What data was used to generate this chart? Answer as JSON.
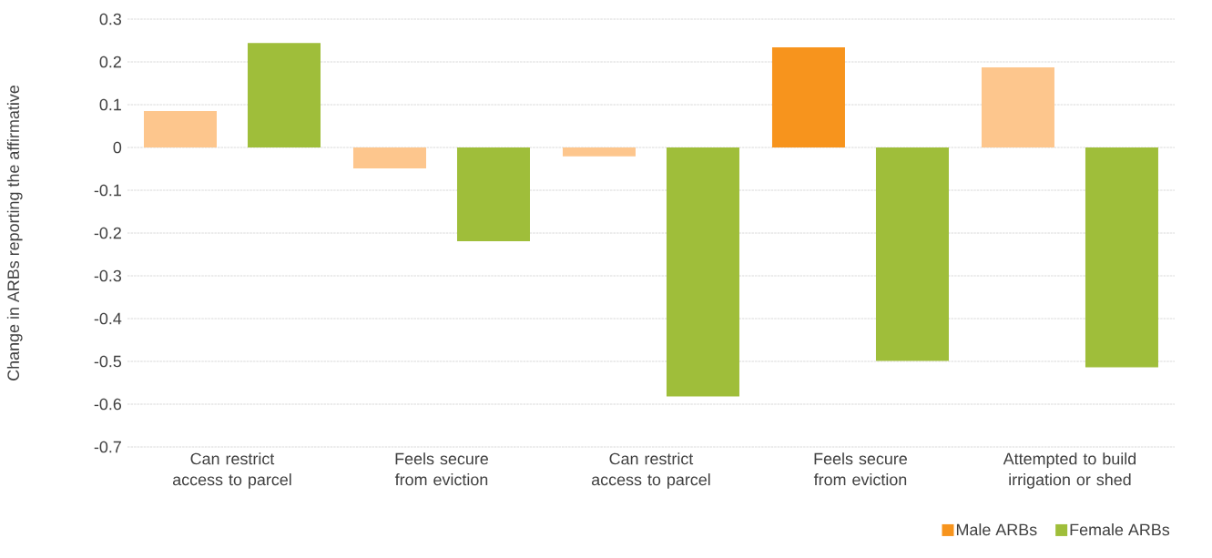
{
  "chart_data": {
    "type": "bar",
    "ylabel": "Change in ARBs reporting the affirmative",
    "categories": [
      "Can restrict access to parcel",
      "Feels secure from eviction",
      "Can restrict access to parcel",
      "Feels secure from eviction",
      "Attempted to build irrigation or shed"
    ],
    "series": [
      {
        "name": "Male ARBs",
        "color": "#f7941d",
        "colors": [
          "#fdc68d",
          "#fdc68d",
          "#fdc68d",
          "#f7941d",
          "#fdc68d"
        ],
        "values": [
          0.085,
          -0.049,
          -0.021,
          0.234,
          0.187
        ]
      },
      {
        "name": "Female ARBs",
        "color": "#9fbe3a",
        "colors": [
          "#9fbe3a",
          "#9fbe3a",
          "#9fbe3a",
          "#9fbe3a",
          "#9fbe3a"
        ],
        "values": [
          0.244,
          -0.219,
          -0.582,
          -0.499,
          -0.514
        ]
      }
    ],
    "ylim": [
      -0.7,
      0.3
    ],
    "yticks": [
      0.3,
      0.2,
      0.1,
      0,
      -0.1,
      -0.2,
      -0.3,
      -0.4,
      -0.5,
      -0.6,
      -0.7
    ],
    "grid": "y",
    "legend": "bottom right"
  }
}
